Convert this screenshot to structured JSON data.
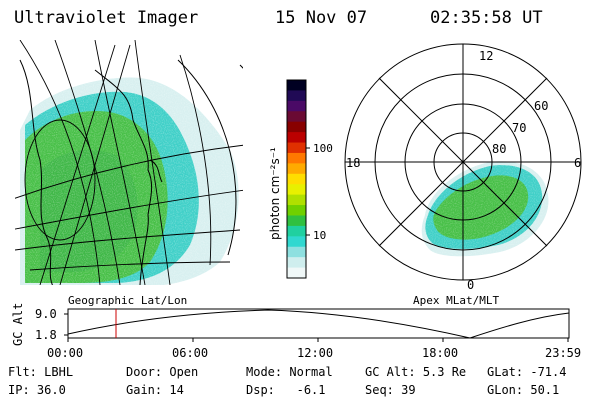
{
  "header": {
    "instrument": "Ultraviolet Imager",
    "date": "15 Nov 07",
    "time": "02:35:58 UT"
  },
  "geo_panel": {
    "label": "Geographic Lat/Lon"
  },
  "colorbar": {
    "unit_label": "photon cm⁻²s⁻¹",
    "tick_labels": [
      "100",
      "10"
    ],
    "colors": [
      "#000022",
      "#200a55",
      "#4a0a66",
      "#6a0a33",
      "#880000",
      "#bb0000",
      "#e03000",
      "#ff7800",
      "#ffaa00",
      "#ffdd00",
      "#e8f000",
      "#b0e000",
      "#70d000",
      "#30c040",
      "#20d0a0",
      "#30d8d0",
      "#8ee0e0",
      "#cfeeee",
      "#f0f8f8"
    ]
  },
  "polar_panel": {
    "label": "Apex MLat/MLT",
    "mlt_labels": [
      "12",
      "18",
      "6",
      "0"
    ],
    "lat_labels": [
      "60",
      "70",
      "80"
    ]
  },
  "altitude_plot": {
    "ylabel": "GC Alt",
    "yticks": [
      "9.0",
      "1.8"
    ],
    "xticks": [
      "00:00",
      "06:00",
      "12:00",
      "18:00",
      "23:59"
    ],
    "marker_color": "#cc0000",
    "marker_time": "02:35:58"
  },
  "params": {
    "flt": {
      "label": "Flt:",
      "value": "LBHL"
    },
    "ip": {
      "label": "IP:",
      "value": "36.0"
    },
    "door": {
      "label": "Door:",
      "value": "Open"
    },
    "gain": {
      "label": "Gain:",
      "value": "14"
    },
    "mode": {
      "label": "Mode:",
      "value": "Normal"
    },
    "dsp": {
      "label": "Dsp:",
      "value": "-6.1"
    },
    "gcalt": {
      "label": "GC Alt:",
      "value": "5.3 Re"
    },
    "seq": {
      "label": "Seq:",
      "value": "39"
    },
    "glat": {
      "label": "GLat:",
      "value": "-71.4"
    },
    "glon": {
      "label": "GLon:",
      "value": "50.1"
    }
  }
}
